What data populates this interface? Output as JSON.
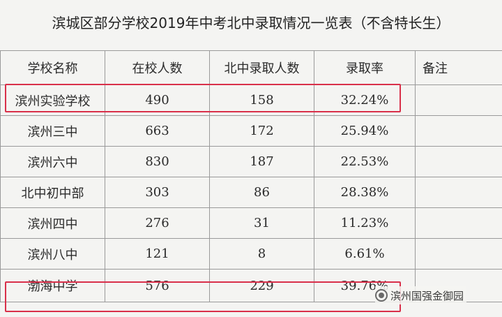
{
  "title": "滨城区部分学校2019年中考北中录取情况一览表（不含特长生）",
  "table": {
    "headers": [
      "学校名称",
      "在校人数",
      "北中录取人数",
      "录取率",
      "备注"
    ],
    "rows": [
      {
        "name": "滨州实验学校",
        "students": "490",
        "admitted": "158",
        "rate": "32.24%",
        "note": ""
      },
      {
        "name": "滨州三中",
        "students": "663",
        "admitted": "172",
        "rate": "25.94%",
        "note": ""
      },
      {
        "name": "滨州六中",
        "students": "830",
        "admitted": "187",
        "rate": "22.53%",
        "note": ""
      },
      {
        "name": "北中初中部",
        "students": "303",
        "admitted": "86",
        "rate": "28.38%",
        "note": ""
      },
      {
        "name": "滨州四中",
        "students": "276",
        "admitted": "31",
        "rate": "11.23%",
        "note": ""
      },
      {
        "name": "滨州八中",
        "students": "121",
        "admitted": "8",
        "rate": "6.61%",
        "note": ""
      },
      {
        "name": "渤海中学",
        "students": "576",
        "admitted": "229",
        "rate": "39.76%",
        "note": ""
      }
    ]
  },
  "watermark": {
    "text": "滨州国强金御园",
    "icon": "wechat-channel-icon"
  },
  "colors": {
    "highlight": "#d9304a"
  }
}
